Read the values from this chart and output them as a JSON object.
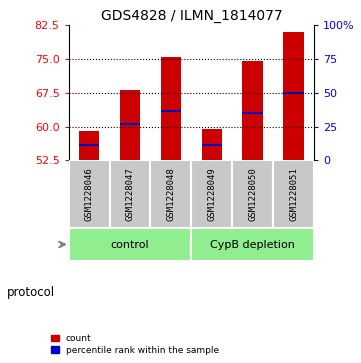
{
  "title": "GDS4828 / ILMN_1814077",
  "samples": [
    "GSM1228046",
    "GSM1228047",
    "GSM1228048",
    "GSM1228049",
    "GSM1228050",
    "GSM1228051"
  ],
  "bar_tops": [
    59.0,
    68.2,
    75.5,
    59.5,
    74.5,
    81.0
  ],
  "bar_bottom": 52.5,
  "blue_values": [
    55.8,
    60.5,
    63.5,
    55.8,
    63.0,
    67.5
  ],
  "ymin": 52.5,
  "ymax": 82.5,
  "yticks_left": [
    52.5,
    60.0,
    67.5,
    75.0,
    82.5
  ],
  "yticks_right_vals": [
    0,
    25,
    50,
    75,
    100
  ],
  "yticks_right_labels": [
    "0",
    "25",
    "50",
    "75",
    "100%"
  ],
  "gridlines": [
    60.0,
    67.5,
    75.0
  ],
  "groups": [
    {
      "label": "control",
      "samples": [
        0,
        1,
        2
      ],
      "color": "#90EE90"
    },
    {
      "label": "CypB depletion",
      "samples": [
        3,
        4,
        5
      ],
      "color": "#90EE90"
    }
  ],
  "bar_color": "#CC0000",
  "blue_color": "#0000CC",
  "bar_width": 0.5,
  "sample_area_color": "#C8C8C8",
  "protocol_label": "protocol",
  "arrow_color": "#808080",
  "legend_items": [
    {
      "label": "count",
      "color": "#CC0000"
    },
    {
      "label": "percentile rank within the sample",
      "color": "#0000CC"
    }
  ]
}
